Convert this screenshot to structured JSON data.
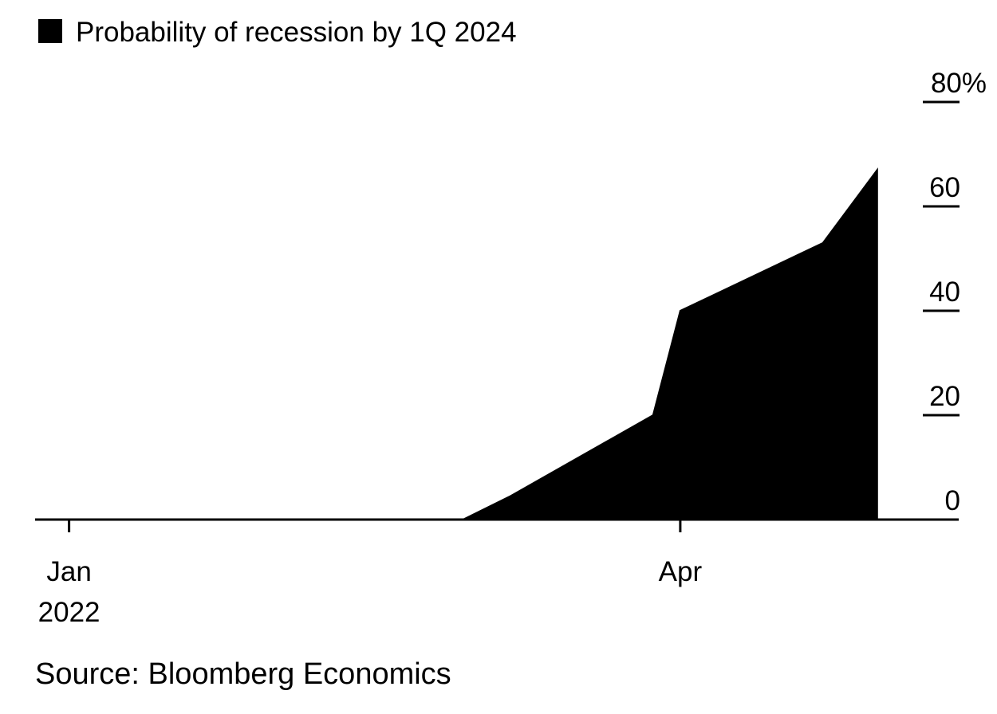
{
  "chart_data": {
    "type": "area",
    "x": [
      "2022-01-01",
      "2022-01-31",
      "2022-02-28",
      "2022-03-07",
      "2022-03-28",
      "2022-04-01",
      "2022-04-22",
      "2022-04-30"
    ],
    "series": [
      {
        "name": "Probability of recession by 1Q 2024",
        "values": [
          0,
          0,
          0,
          4.5,
          20,
          40,
          53,
          67
        ]
      }
    ],
    "xticks": [
      {
        "date": "2022-01-01",
        "label": "Jan",
        "sublabel": "2022"
      },
      {
        "date": "2022-04-01",
        "label": "Apr",
        "sublabel": ""
      }
    ],
    "x_range": [
      "2021-12-27",
      "2022-05-12"
    ],
    "ylim": [
      0,
      80
    ],
    "yticks": [
      0,
      20,
      40,
      60,
      80
    ],
    "ytick_labels": [
      "0",
      "20",
      "40",
      "60",
      "80%"
    ],
    "y_axis_side": "right",
    "legend_position": "top-left",
    "grid": false,
    "fill_color": "#000000",
    "source": "Source: Bloomberg Economics"
  }
}
